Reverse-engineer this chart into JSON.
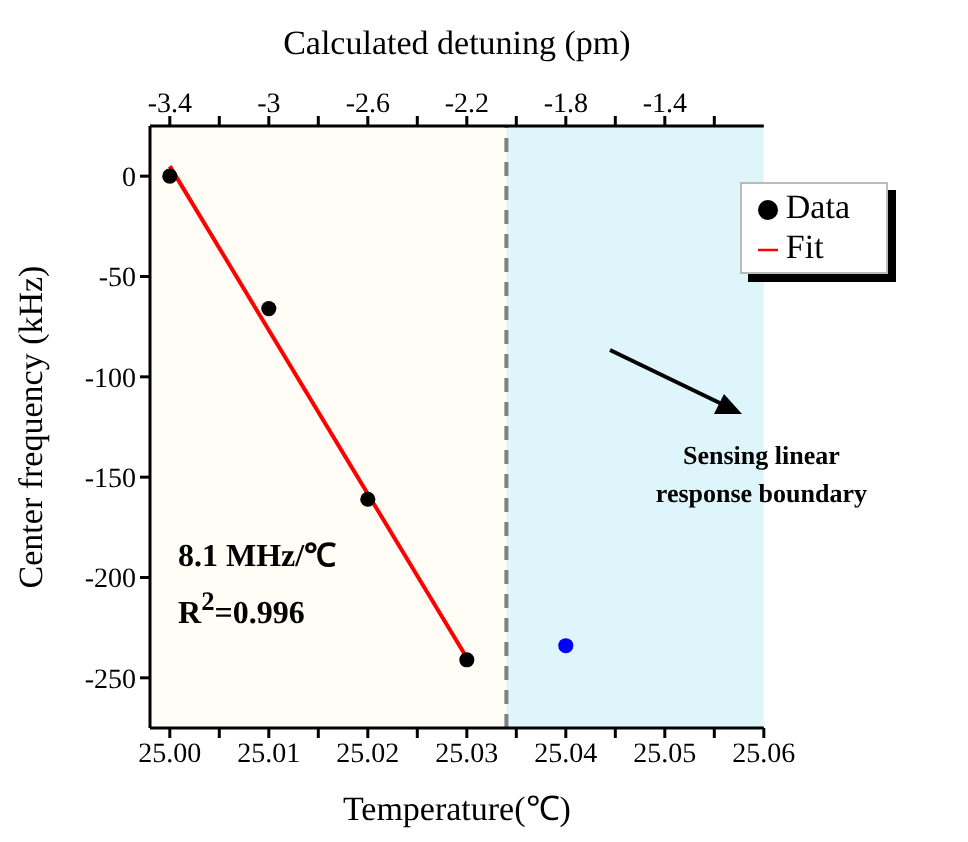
{
  "chart_data": {
    "type": "scatter",
    "xlabel": "Temperature(℃)",
    "ylabel": "Center frequency (kHz)",
    "x2label": "Calculated detuning (pm)",
    "xlim": [
      24.998,
      25.06
    ],
    "xticks": [
      {
        "value": 25.0,
        "label": "25.00"
      },
      {
        "value": 25.005,
        "label": null
      },
      {
        "value": 25.01,
        "label": "25.01"
      },
      {
        "value": 25.015,
        "label": null
      },
      {
        "value": 25.02,
        "label": "25.02"
      },
      {
        "value": 25.025,
        "label": null
      },
      {
        "value": 25.03,
        "label": "25.03"
      },
      {
        "value": 25.035,
        "label": null
      },
      {
        "value": 25.04,
        "label": "25.04"
      },
      {
        "value": 25.045,
        "label": null
      },
      {
        "value": 25.05,
        "label": "25.05"
      },
      {
        "value": 25.055,
        "label": null
      },
      {
        "value": 25.06,
        "label": "25.06"
      }
    ],
    "x2lim": [
      -3.48,
      -1.0
    ],
    "x2ticks": [
      -3.4,
      {
        "value": -3.2,
        "label": null
      },
      -3,
      {
        "value": -2.8,
        "label": null
      },
      -2.6,
      {
        "value": -2.4,
        "label": null
      },
      -2.2,
      {
        "value": -2.0,
        "label": null
      },
      -1.8,
      {
        "value": -1.6,
        "label": null
      },
      -1.4,
      {
        "value": -1.2,
        "label": null
      }
    ],
    "ylim": [
      -275,
      25
    ],
    "yticks": [
      0,
      -50,
      -100,
      -150,
      -200,
      -250
    ],
    "series": [
      {
        "name": "Data",
        "color": "#000000",
        "x": [
          25.0,
          25.01,
          25.02,
          25.03
        ],
        "values": [
          0,
          -66,
          -161,
          -241
        ]
      },
      {
        "color": "#0000ff",
        "x": [
          25.04
        ],
        "values": [
          -234
        ]
      },
      {
        "name": "Fit",
        "type": "line",
        "color": "#ff0000",
        "x": [
          25.0,
          25.03
        ],
        "values": [
          5,
          -240
        ]
      }
    ],
    "bands": [
      {
        "axis": "x",
        "from": 24.998,
        "to": 25.034,
        "color": "#fffdf5"
      },
      {
        "axis": "x",
        "from": 25.034,
        "to": 25.06,
        "color": "#dff5fc"
      }
    ],
    "ref_lines": [
      {
        "axis": "x",
        "value": 25.034,
        "color": "#808080",
        "line_style": "dashed"
      }
    ],
    "annotations": [
      "Sensing linear response boundary",
      "8.1 MHz/℃",
      "R$^{2}$=0.996"
    ],
    "legend": "top right"
  }
}
